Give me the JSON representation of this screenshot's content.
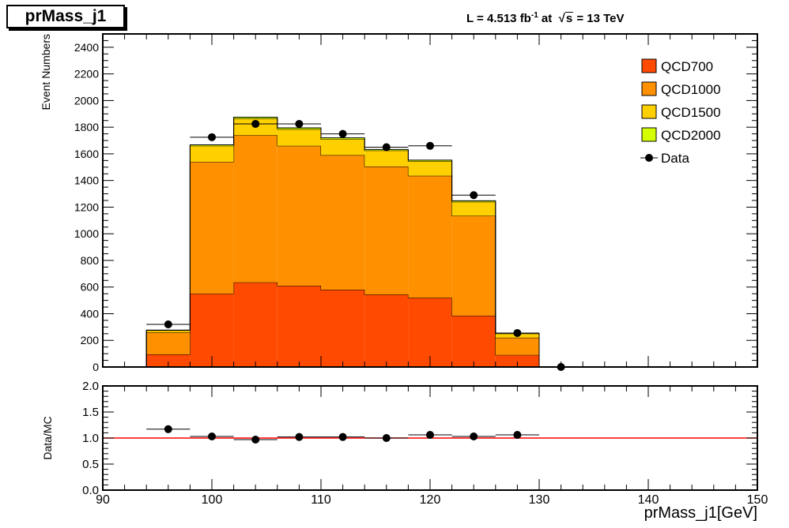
{
  "header": {
    "title": "prMass_j1",
    "lumi": {
      "prefix": "L = 4.513 fb",
      "exponent": "-1",
      "middle": " at  ",
      "root": "s",
      "suffix": " = 13 TeV"
    }
  },
  "chart_data": [
    {
      "type": "bar",
      "stacked": true,
      "bin_edges": [
        90,
        94,
        98,
        102,
        106,
        110,
        114,
        118,
        122,
        126,
        130,
        134,
        138,
        142,
        146,
        150
      ],
      "series": [
        {
          "name": "QCD700",
          "color": "#ff4a00",
          "values": [
            0,
            95,
            550,
            635,
            610,
            580,
            545,
            520,
            385,
            90,
            0,
            0,
            0,
            0,
            0
          ]
        },
        {
          "name": "QCD1000",
          "color": "#ff9100",
          "values": [
            0,
            165,
            990,
            1105,
            1050,
            1010,
            960,
            915,
            750,
            130,
            0,
            0,
            0,
            0,
            0
          ]
        },
        {
          "name": "QCD1500",
          "color": "#ffd000",
          "values": [
            0,
            15,
            120,
            125,
            125,
            120,
            120,
            110,
            105,
            30,
            0,
            0,
            0,
            0,
            0
          ]
        },
        {
          "name": "QCD2000",
          "color": "#d4ff00",
          "values": [
            0,
            2,
            8,
            10,
            10,
            10,
            8,
            8,
            8,
            3,
            0,
            0,
            0,
            0,
            0
          ]
        }
      ],
      "data_points": {
        "name": "Data",
        "x": [
          96,
          100,
          104,
          108,
          112,
          116,
          120,
          124,
          128,
          132
        ],
        "y": [
          320,
          1725,
          1825,
          1825,
          1750,
          1650,
          1660,
          1290,
          255,
          0
        ]
      },
      "ylabel": "Event Numbers",
      "xlim": [
        90,
        150
      ],
      "ylim": [
        0,
        2500
      ],
      "yticks": [
        0,
        200,
        400,
        600,
        800,
        1000,
        1200,
        1400,
        1600,
        1800,
        2000,
        2200,
        2400
      ],
      "legend": "top-right",
      "grid": false
    },
    {
      "type": "scatter",
      "x": [
        96,
        100,
        104,
        108,
        112,
        116,
        120,
        124,
        128
      ],
      "y": [
        1.17,
        1.03,
        0.97,
        1.02,
        1.02,
        1.0,
        1.06,
        1.03,
        1.06
      ],
      "reference_line": {
        "y": 1.0,
        "color": "#ff0000"
      },
      "ylabel": "Data/MC",
      "xlabel": "prMass_j1[GeV]",
      "xlim": [
        90,
        150
      ],
      "ylim": [
        0.0,
        2.0
      ],
      "yticks": [
        "0.0",
        "0.5",
        "1.0",
        "1.5",
        "2.0"
      ],
      "xticks": [
        90,
        100,
        110,
        120,
        130,
        140,
        150
      ],
      "grid": false
    }
  ]
}
